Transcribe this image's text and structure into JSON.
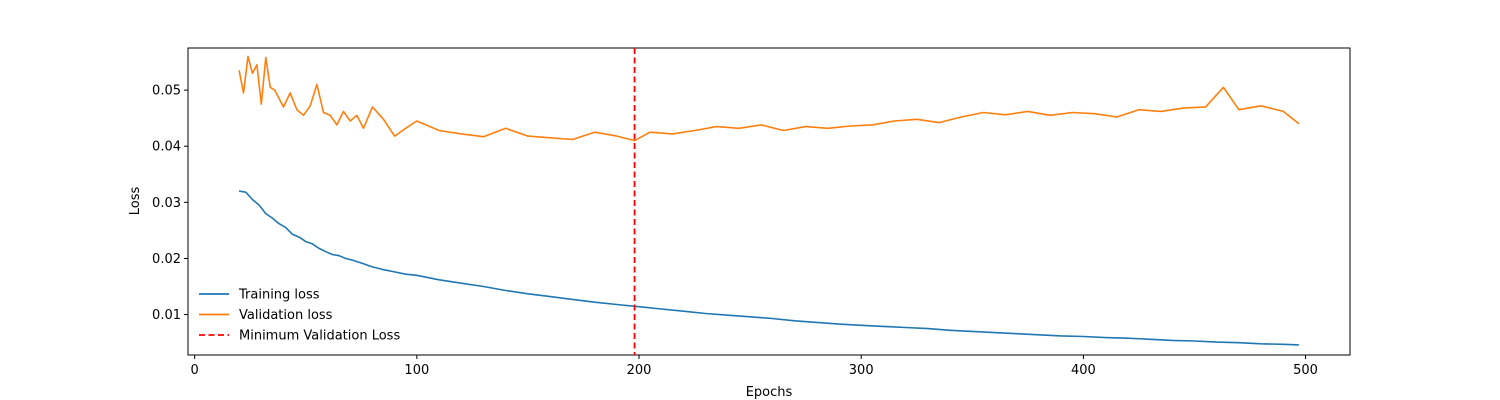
{
  "chart_data": {
    "type": "line",
    "title": "",
    "xlabel": "Epochs",
    "ylabel": "Loss",
    "xlim": [
      -3,
      520
    ],
    "ylim": [
      0.0028,
      0.0575
    ],
    "xticks": [
      0,
      100,
      200,
      300,
      400,
      500
    ],
    "yticks": [
      0.01,
      0.02,
      0.03,
      0.04,
      0.05
    ],
    "xtick_labels": [
      "0",
      "100",
      "200",
      "300",
      "400",
      "500"
    ],
    "ytick_labels": [
      "0.01",
      "0.02",
      "0.03",
      "0.04",
      "0.05"
    ],
    "grid": false,
    "legend_position": "lower-left",
    "series": [
      {
        "name": "Training loss",
        "color": "#1f77b4",
        "style": "solid",
        "x": [
          20,
          23,
          26,
          29,
          32,
          35,
          38,
          41,
          44,
          47,
          50,
          53,
          56,
          59,
          62,
          65,
          68,
          71,
          75,
          80,
          85,
          90,
          95,
          100,
          110,
          120,
          130,
          140,
          150,
          160,
          170,
          180,
          190,
          200,
          210,
          220,
          230,
          240,
          250,
          260,
          270,
          280,
          290,
          300,
          310,
          320,
          330,
          340,
          350,
          360,
          370,
          380,
          390,
          400,
          410,
          420,
          430,
          440,
          450,
          460,
          470,
          480,
          490,
          497
        ],
        "y": [
          0.032,
          0.0318,
          0.0305,
          0.0295,
          0.028,
          0.0272,
          0.0262,
          0.0255,
          0.0243,
          0.0238,
          0.023,
          0.0226,
          0.0218,
          0.0212,
          0.0207,
          0.0205,
          0.02,
          0.0197,
          0.0192,
          0.0185,
          0.018,
          0.0176,
          0.0172,
          0.017,
          0.0162,
          0.0156,
          0.015,
          0.0143,
          0.0137,
          0.0132,
          0.0127,
          0.0122,
          0.0118,
          0.0114,
          0.011,
          0.0106,
          0.0102,
          0.0099,
          0.0096,
          0.0093,
          0.0089,
          0.0086,
          0.0083,
          0.0081,
          0.0079,
          0.0077,
          0.0075,
          0.0072,
          0.007,
          0.0068,
          0.0066,
          0.0064,
          0.0062,
          0.0061,
          0.0059,
          0.0058,
          0.0056,
          0.0054,
          0.0053,
          0.0051,
          0.005,
          0.0048,
          0.0047,
          0.0046
        ]
      },
      {
        "name": "Validation loss",
        "color": "#ff7f0e",
        "style": "solid",
        "x": [
          20,
          22,
          24,
          26,
          28,
          30,
          32,
          34,
          36,
          38,
          40,
          43,
          46,
          49,
          52,
          55,
          58,
          61,
          64,
          67,
          70,
          73,
          76,
          80,
          85,
          90,
          95,
          100,
          110,
          120,
          130,
          140,
          150,
          160,
          170,
          180,
          190,
          198,
          205,
          215,
          225,
          235,
          245,
          255,
          265,
          275,
          285,
          295,
          305,
          315,
          325,
          335,
          345,
          355,
          365,
          375,
          385,
          395,
          405,
          415,
          425,
          435,
          445,
          455,
          463,
          470,
          480,
          490,
          497
        ],
        "y": [
          0.0535,
          0.0495,
          0.056,
          0.053,
          0.0545,
          0.0475,
          0.0558,
          0.0505,
          0.05,
          0.0485,
          0.047,
          0.0495,
          0.0465,
          0.0455,
          0.0472,
          0.051,
          0.046,
          0.0455,
          0.0438,
          0.0462,
          0.0445,
          0.0455,
          0.0432,
          0.047,
          0.0448,
          0.0418,
          0.0432,
          0.0445,
          0.0428,
          0.0422,
          0.0417,
          0.0432,
          0.0418,
          0.0415,
          0.0412,
          0.0425,
          0.0418,
          0.041,
          0.0425,
          0.0422,
          0.0428,
          0.0435,
          0.0432,
          0.0438,
          0.0428,
          0.0435,
          0.0432,
          0.0436,
          0.0438,
          0.0445,
          0.0448,
          0.0442,
          0.0452,
          0.046,
          0.0456,
          0.0462,
          0.0455,
          0.046,
          0.0458,
          0.0452,
          0.0465,
          0.0462,
          0.0468,
          0.047,
          0.0505,
          0.0465,
          0.0472,
          0.0462,
          0.044
        ]
      }
    ],
    "vlines": [
      {
        "name": "Minimum Validation Loss",
        "x": 198,
        "color": "#ff0000",
        "style": "dashed"
      }
    ]
  }
}
